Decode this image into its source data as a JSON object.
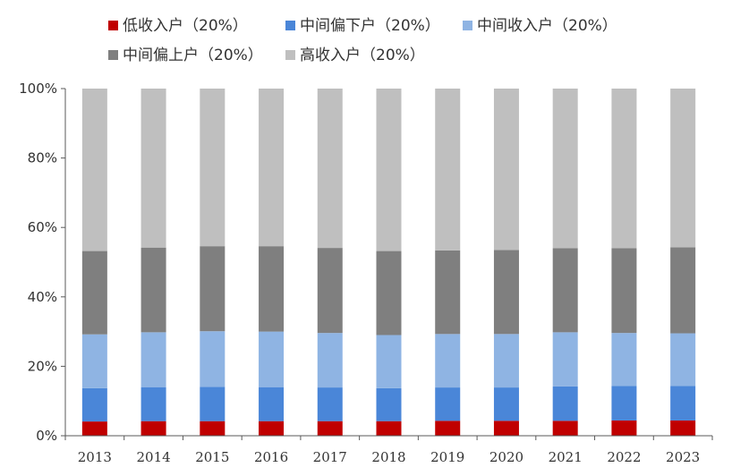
{
  "chart_data": {
    "type": "bar",
    "stacked": true,
    "categories": [
      "2013",
      "2014",
      "2015",
      "2016",
      "2017",
      "2018",
      "2019",
      "2020",
      "2021",
      "2022",
      "2023"
    ],
    "ylim": [
      0,
      100
    ],
    "yticks": [
      0,
      20,
      40,
      60,
      80,
      100
    ],
    "ytick_labels": [
      "0%",
      "20%",
      "40%",
      "60%",
      "80%",
      "100%"
    ],
    "grid": false,
    "legend_position": "top",
    "series": [
      {
        "name": "低收入户（20%）",
        "color": "#c00000",
        "values": [
          4.1,
          4.2,
          4.2,
          4.2,
          4.2,
          4.2,
          4.3,
          4.3,
          4.3,
          4.4,
          4.4
        ]
      },
      {
        "name": "中间偏下户（20%）",
        "color": "#4a86d8",
        "values": [
          9.6,
          9.8,
          9.9,
          9.8,
          9.7,
          9.5,
          9.6,
          9.6,
          9.9,
          9.9,
          9.9
        ]
      },
      {
        "name": "中间收入户（20%）",
        "color": "#8fb4e3",
        "values": [
          15.5,
          15.8,
          16.0,
          16.0,
          15.7,
          15.3,
          15.4,
          15.4,
          15.6,
          15.3,
          15.2
        ]
      },
      {
        "name": "中间偏上户（20%）",
        "color": "#7f7f7f",
        "values": [
          24.0,
          24.4,
          24.5,
          24.6,
          24.5,
          24.2,
          24.1,
          24.2,
          24.2,
          24.4,
          24.8
        ]
      },
      {
        "name": "高收入户（20%）",
        "color": "#bfbfbf",
        "values": [
          46.8,
          45.8,
          45.4,
          45.4,
          45.9,
          46.8,
          46.6,
          46.5,
          46.0,
          46.0,
          45.7
        ]
      }
    ]
  }
}
